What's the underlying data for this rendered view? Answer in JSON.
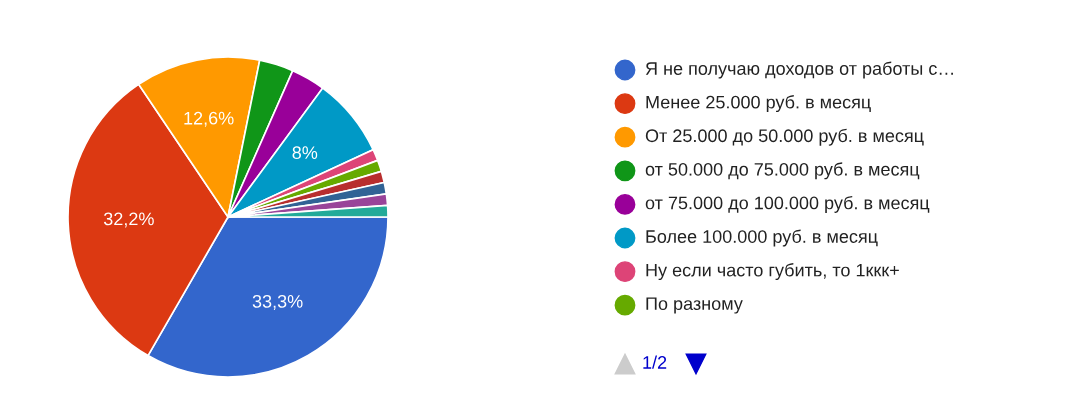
{
  "chart_data": {
    "type": "pie",
    "categories": [
      "Я не получаю доходов от работы с…",
      "Менее 25.000 руб. в месяц",
      "От 25.000 до 50.000 руб. в месяц",
      "от 50.000 до 75.000 руб. в месяц",
      "от 75.000 до 100.000 руб. в месяц",
      "Более 100.000 руб. в месяц",
      "Ну если часто губить, то 1ккк+",
      "По разному",
      null,
      null,
      null,
      null
    ],
    "values": [
      33.3,
      32.2,
      12.6,
      3.45,
      3.45,
      8,
      1.15,
      1.15,
      1.15,
      1.15,
      1.15,
      1.15
    ],
    "value_labels": [
      "33,3%",
      "32,2%",
      "12,6%",
      null,
      null,
      "8%",
      null,
      null,
      null,
      null,
      null,
      null
    ],
    "colors": [
      "#3366cc",
      "#dc3912",
      "#ff9900",
      "#109618",
      "#990099",
      "#0099c6",
      "#dd4477",
      "#66aa00",
      "#b82e2e",
      "#316395",
      "#994499",
      "#22aa99"
    ],
    "legend": "right",
    "annotations": [
      "1/2"
    ]
  }
}
